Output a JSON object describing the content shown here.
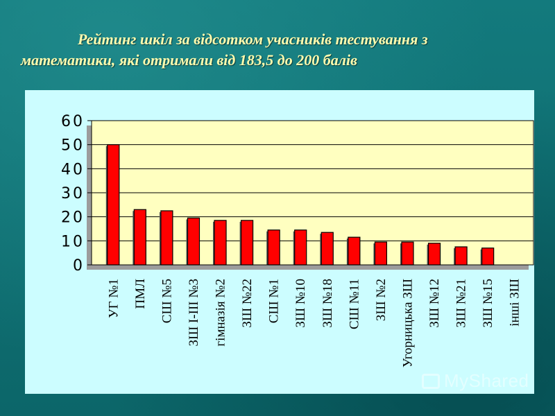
{
  "slide": {
    "title_line1": "Рейтинг шкіл за відсотком учасників тестування з",
    "title_line2": "математики, які отримали від 183,5 до 200 балів",
    "title_color": "#fffcae",
    "background_color": "#0f6f73",
    "panel_color": "#ccfdff",
    "watermark": "MyShared"
  },
  "chart_data": {
    "type": "bar",
    "categories": [
      "УГ №1",
      "ПМЛ",
      "СШ №5",
      "ЗШ І-ІІІ №3",
      "гімназія №2",
      "ЗШ №22",
      "СШ №1",
      "ЗШ №10",
      "ЗШ №18",
      "СШ №11",
      "ЗШ №2",
      "Угорницька ЗШ",
      "ЗШ №12",
      "ЗШ №21",
      "ЗШ №15",
      "інші ЗШ"
    ],
    "values": [
      50,
      23,
      22.5,
      19.5,
      18.5,
      18.5,
      14.5,
      14.5,
      13.5,
      11.5,
      9.5,
      9.5,
      9,
      7.5,
      7,
      0
    ],
    "ylim": [
      0,
      60
    ],
    "yticks": [
      0,
      10,
      20,
      30,
      40,
      50,
      60
    ],
    "grid": true,
    "bar_color": "#ff0000",
    "plot_background": "#ffffc0",
    "xlabel": "",
    "ylabel": ""
  }
}
